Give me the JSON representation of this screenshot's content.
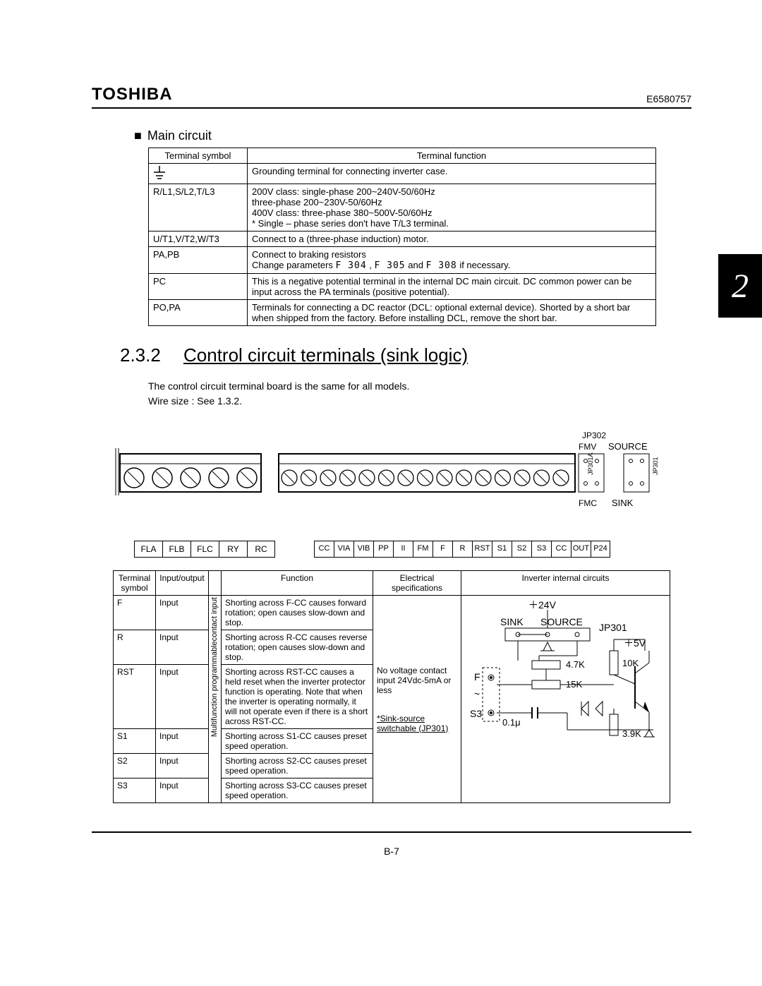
{
  "header": {
    "brand": "TOSHIBA",
    "docnum": "E6580757"
  },
  "chapter_tab": "2",
  "main_circuit": {
    "title": "Main circuit",
    "columns": [
      "Terminal symbol",
      "Terminal function"
    ],
    "rows": [
      {
        "symbol_type": "ground",
        "func": "Grounding terminal for connecting inverter case."
      },
      {
        "symbol": "R/L1,S/L2,T/L3",
        "func": "200V class: single-phase 200~240V-50/60Hz\n                      three-phase 200~230V-50/60Hz\n400V class: three-phase 380~500V-50/60Hz\n* Single – phase series don't have T/L3 terminal."
      },
      {
        "symbol": "U/T1,V/T2,W/T3",
        "func": "Connect to a (three-phase induction) motor."
      },
      {
        "symbol": "PA,PB",
        "func_pre": "Connect to braking resistors\nChange parameters ",
        "params": [
          "F 304",
          "F 305",
          "F 308"
        ],
        "func_mid1": " , ",
        "func_mid2": " and ",
        "func_post": " if necessary."
      },
      {
        "symbol": "PC",
        "func": "This is a negative potential terminal in the internal DC main circuit. DC common power can be input across the PA terminals (positive potential)."
      },
      {
        "symbol": "PO,PA",
        "func": "Terminals for connecting a DC reactor (DCL: optional external device).  Shorted by a short bar when shipped from the factory.  Before installing DCL, remove the short bar."
      }
    ]
  },
  "section_232": {
    "number": "2.3.2",
    "title": "Control circuit terminals (sink logic)",
    "desc1": "The control circuit terminal board is the same for all models.",
    "desc2": "Wire size : See 1.3.2."
  },
  "connector_diagram": {
    "labels_top": {
      "jp302": "JP302",
      "fmv": "FMV",
      "source": "SOURCE",
      "fmc": "FMC",
      "sink": "SINK",
      "jp301a": "JP301A",
      "jp301": "JP301"
    },
    "group1": [
      "FLA",
      "FLB",
      "FLC",
      "RY",
      "RC"
    ],
    "group2": [
      "CC",
      "VIA",
      "VIB",
      "PP",
      "II",
      "FM",
      "F",
      "R",
      "RST",
      "S1",
      "S2",
      "S3",
      "CC",
      "OUT",
      "P24"
    ]
  },
  "control_table": {
    "columns": [
      "Terminal symbol",
      "Input/output",
      "",
      "Function",
      "Electrical specifications",
      "Inverter internal circuits"
    ],
    "elec_spec": {
      "line1": "No voltage contact",
      "line2": "input 24Vdc-5mA or",
      "line3": "less",
      "note_label": "*Sink-source",
      "note_link": "switchable (JP301)"
    },
    "circuit_labels": {
      "v24": "＋24V",
      "sink": "SINK",
      "source": "SOURCE",
      "jp301": "JP301",
      "v5": "＋5V",
      "r47k": "4.7K",
      "r10k": "10K",
      "r15k": "15K",
      "r39k": "3.9K",
      "f": "F",
      "wave": "~",
      "s3": "S3",
      "c01u": "0.1μ"
    },
    "vlabel1": "Multifunction programmablecontact input",
    "rows": [
      {
        "sym": "F",
        "io": "Input",
        "func": "Shorting across F-CC causes forward rotation; open causes slow-down and stop."
      },
      {
        "sym": "R",
        "io": "Input",
        "func": "Shorting across R-CC causes reverse rotation; open causes slow-down and stop."
      },
      {
        "sym": "RST",
        "io": "Input",
        "func": "Shorting across RST-CC causes a held reset when the inverter protector function is operating.  Note that when the inverter is operating normally, it will not operate even if there is a short across RST-CC."
      },
      {
        "sym": "S1",
        "io": "Input",
        "func": "Shorting across S1-CC causes preset speed operation."
      },
      {
        "sym": "S2",
        "io": "Input",
        "func": "Shorting across S2-CC causes preset speed operation."
      },
      {
        "sym": "S3",
        "io": "Input",
        "func": "Shorting across S3-CC causes preset speed operation."
      }
    ]
  },
  "page_number": "B-7"
}
